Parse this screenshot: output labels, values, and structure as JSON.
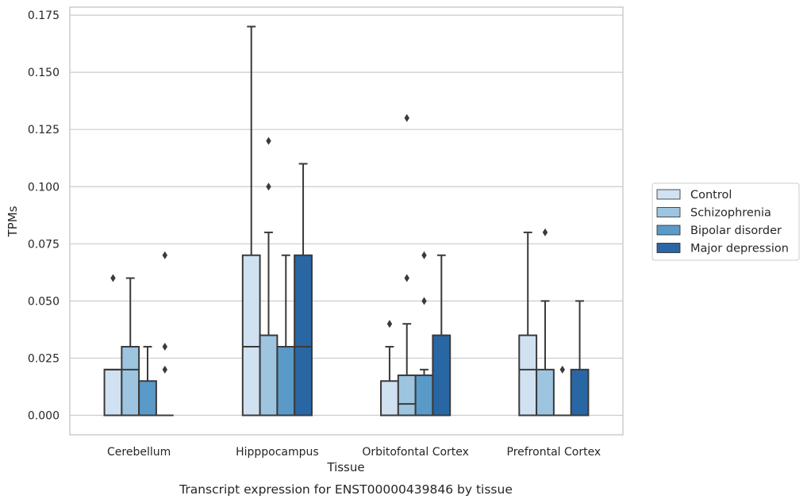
{
  "chart_data": {
    "type": "box",
    "title": "",
    "caption": "Transcript expression for ENST00000439846 by tissue",
    "xlabel": "Tissue",
    "ylabel": "TPMs",
    "ylim": [
      -0.0085,
      0.1785
    ],
    "yticks": [
      0.0,
      0.025,
      0.05,
      0.075,
      0.1,
      0.125,
      0.15,
      0.175
    ],
    "ytick_labels": [
      "0.000",
      "0.025",
      "0.050",
      "0.075",
      "0.100",
      "0.125",
      "0.150",
      "0.175"
    ],
    "grid": true,
    "legend_position": "right",
    "categories": [
      "Cerebellum",
      "Hipppocampus",
      "Orbitofontal Cortex",
      "Prefrontal Cortex"
    ],
    "series": [
      {
        "name": "Control",
        "color": "#d0e1f2",
        "boxes": [
          {
            "q1": 0.0,
            "median": 0.02,
            "q3": 0.02,
            "whisker_low": 0.0,
            "whisker_high": 0.02,
            "outliers": [
              0.06
            ]
          },
          {
            "q1": 0.0,
            "median": 0.03,
            "q3": 0.07,
            "whisker_low": 0.0,
            "whisker_high": 0.17,
            "outliers": []
          },
          {
            "q1": 0.0,
            "median": 0.0,
            "q3": 0.015,
            "whisker_low": 0.0,
            "whisker_high": 0.03,
            "outliers": [
              0.04
            ]
          },
          {
            "q1": 0.0,
            "median": 0.02,
            "q3": 0.035,
            "whisker_low": 0.0,
            "whisker_high": 0.08,
            "outliers": []
          }
        ]
      },
      {
        "name": "Schizophrenia",
        "color": "#9dc5df",
        "boxes": [
          {
            "q1": 0.0,
            "median": 0.02,
            "q3": 0.03,
            "whisker_low": 0.0,
            "whisker_high": 0.06,
            "outliers": []
          },
          {
            "q1": 0.0,
            "median": 0.0,
            "q3": 0.035,
            "whisker_low": 0.0,
            "whisker_high": 0.08,
            "outliers": [
              0.1,
              0.12
            ]
          },
          {
            "q1": 0.0,
            "median": 0.005,
            "q3": 0.0175,
            "whisker_low": 0.0,
            "whisker_high": 0.04,
            "outliers": [
              0.06,
              0.13
            ]
          },
          {
            "q1": 0.0,
            "median": 0.0,
            "q3": 0.02,
            "whisker_low": 0.0,
            "whisker_high": 0.05,
            "outliers": [
              0.08
            ]
          }
        ]
      },
      {
        "name": "Bipolar disorder",
        "color": "#5a9ac8",
        "boxes": [
          {
            "q1": 0.0,
            "median": 0.0,
            "q3": 0.015,
            "whisker_low": 0.0,
            "whisker_high": 0.03,
            "outliers": []
          },
          {
            "q1": 0.0,
            "median": 0.0,
            "q3": 0.03,
            "whisker_low": 0.0,
            "whisker_high": 0.07,
            "outliers": []
          },
          {
            "q1": 0.0,
            "median": 0.0,
            "q3": 0.0175,
            "whisker_low": 0.0,
            "whisker_high": 0.02,
            "outliers": [
              0.05,
              0.07
            ]
          },
          {
            "q1": 0.0,
            "median": 0.0,
            "q3": 0.0,
            "whisker_low": 0.0,
            "whisker_high": 0.0,
            "outliers": [
              0.02
            ]
          }
        ]
      },
      {
        "name": "Major depression",
        "color": "#2966a4",
        "boxes": [
          {
            "q1": 0.0,
            "median": 0.0,
            "q3": 0.0,
            "whisker_low": 0.0,
            "whisker_high": 0.0,
            "outliers": [
              0.02,
              0.03,
              0.07
            ]
          },
          {
            "q1": 0.0,
            "median": 0.03,
            "q3": 0.07,
            "whisker_low": 0.0,
            "whisker_high": 0.11,
            "outliers": []
          },
          {
            "q1": 0.0,
            "median": 0.0,
            "q3": 0.035,
            "whisker_low": 0.0,
            "whisker_high": 0.07,
            "outliers": []
          },
          {
            "q1": 0.0,
            "median": 0.0,
            "q3": 0.02,
            "whisker_low": 0.0,
            "whisker_high": 0.05,
            "outliers": []
          }
        ]
      }
    ],
    "colors": {
      "grid": "#cccccc",
      "frame": "#cccccc",
      "line": "#3a3a3a",
      "text": "#262626"
    }
  }
}
